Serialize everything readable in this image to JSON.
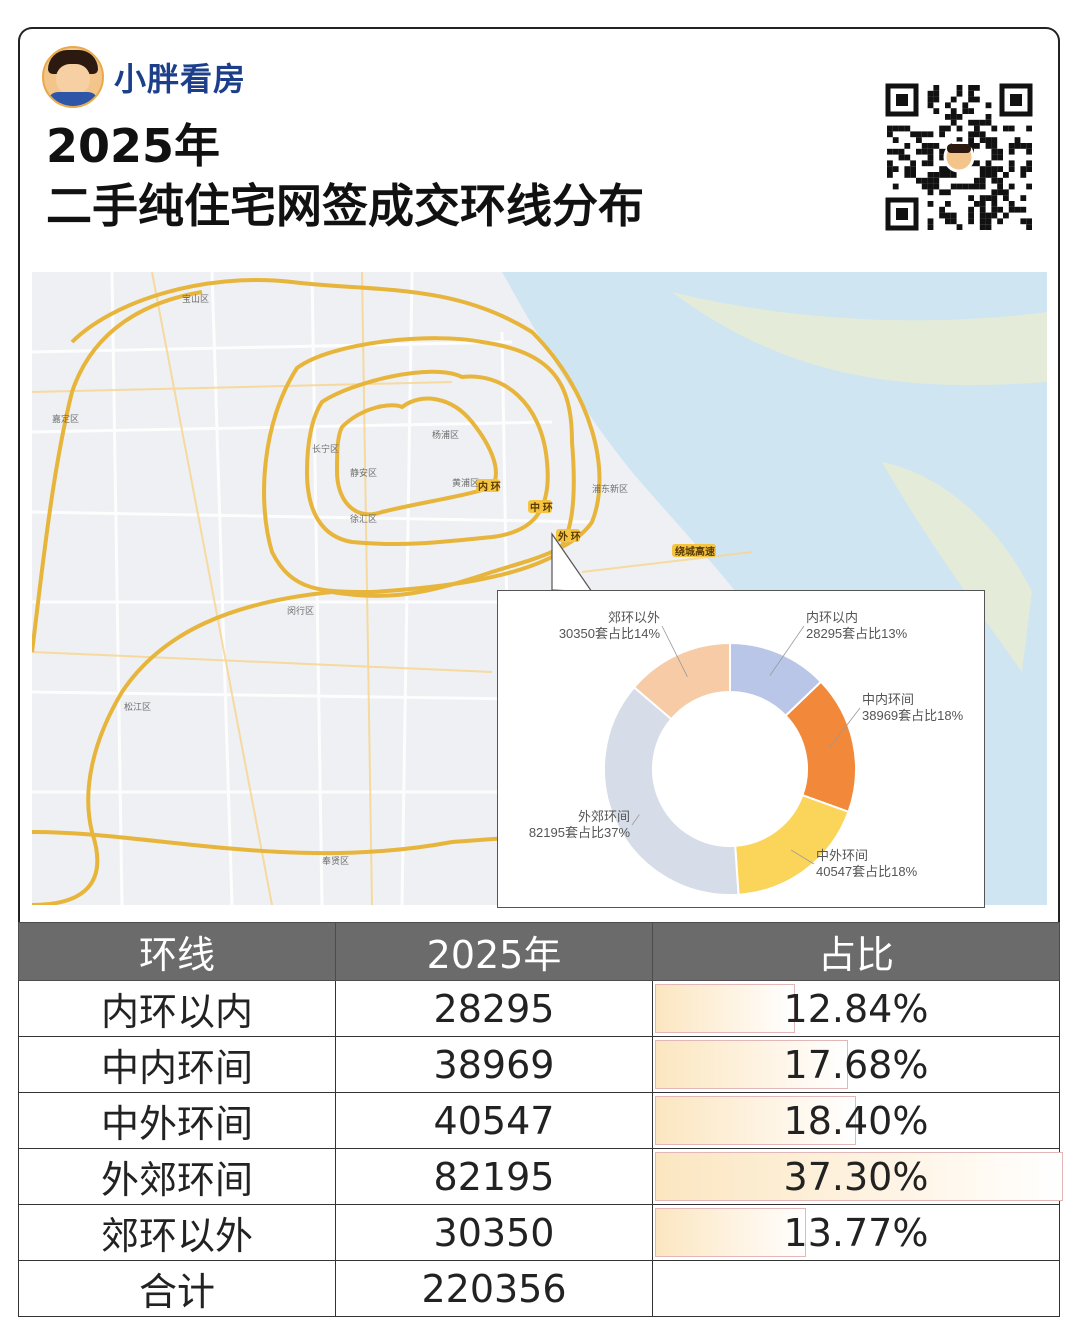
{
  "brand": {
    "name": "小胖看房",
    "avatar": "cartoon-avatar-icon"
  },
  "title": {
    "line1": "2025年",
    "line2": "二手纯住宅网签成交环线分布"
  },
  "map": {
    "ring_labels": [
      "内 环",
      "中 环",
      "外 环"
    ],
    "highway_label": "绕城高速",
    "place_labels": [
      "长宁区",
      "静安区",
      "黄浦区",
      "杨浦区",
      "徐汇区",
      "闵行区",
      "松江区",
      "奉贤区",
      "宝山区",
      "嘉定区",
      "浦东新区"
    ]
  },
  "chart_data": [
    {
      "type": "pie",
      "donut": true,
      "categories": [
        "内环以内",
        "中内环间",
        "中外环间",
        "外郊环间",
        "郊环以外"
      ],
      "values": [
        28295,
        38969,
        40547,
        82195,
        30350
      ],
      "percent_labels": [
        "13%",
        "18%",
        "18%",
        "37%",
        "14%"
      ],
      "data_labels": [
        "28295套占比13%",
        "38969套占比18%",
        "40547套占比18%",
        "82195套占比37%",
        "30350套占比14%"
      ],
      "colors": [
        "#b9c6e8",
        "#f2883a",
        "#fbd55a",
        "#d6dce8",
        "#f6cba6"
      ],
      "title": ""
    },
    {
      "type": "table",
      "columns": [
        "环线",
        "2025年",
        "占比"
      ],
      "rows": [
        {
          "ring": "内环以内",
          "count": "28295",
          "share": "12.84%",
          "share_value": 12.84
        },
        {
          "ring": "中内环间",
          "count": "38969",
          "share": "17.68%",
          "share_value": 17.68
        },
        {
          "ring": "中外环间",
          "count": "40547",
          "share": "18.40%",
          "share_value": 18.4
        },
        {
          "ring": "外郊环间",
          "count": "82195",
          "share": "37.30%",
          "share_value": 37.3
        },
        {
          "ring": "郊环以外",
          "count": "30350",
          "share": "13.77%",
          "share_value": 13.77
        }
      ],
      "total": {
        "label": "合计",
        "count": "220356"
      },
      "bar_max": 37.3
    }
  ]
}
